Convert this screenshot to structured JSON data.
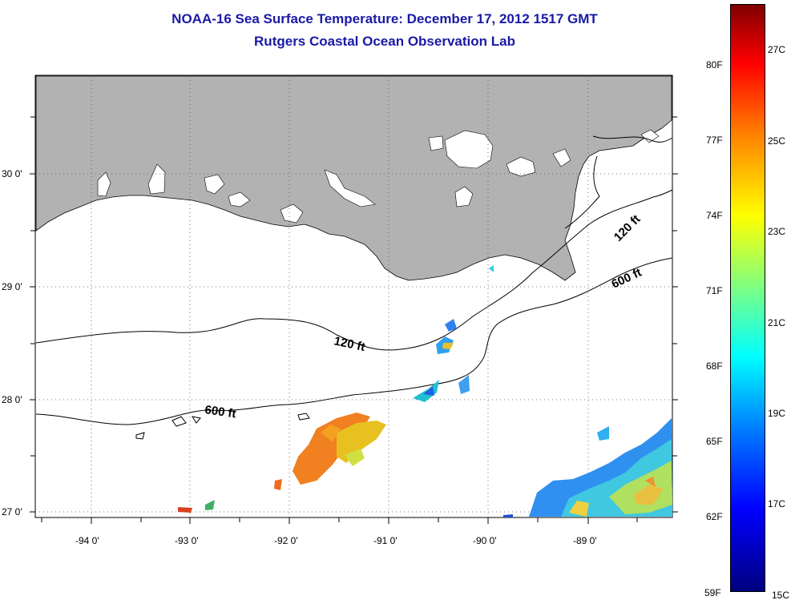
{
  "title": {
    "line1": "NOAA-16 Sea Surface Temperature:  December 17, 2012 1517 GMT",
    "line2": "Rutgers Coastal Ocean Observation Lab"
  },
  "map": {
    "land_color": "#b2b2b2",
    "water_color": "#ffffff",
    "lat_labels": [
      "30 0'",
      "29 0'",
      "28 0'",
      "27 0'"
    ],
    "lon_labels": [
      "-94 0'",
      "-93 0'",
      "-92 0'",
      "-91 0'",
      "-90 0'",
      "-89 0'"
    ],
    "isobaths": [
      {
        "label": "120 ft"
      },
      {
        "label": "600 ft"
      },
      {
        "label": "120 ft"
      },
      {
        "label": "600 ft"
      }
    ]
  },
  "colorbar": {
    "fahrenheit_labels": [
      "80F",
      "77F",
      "74F",
      "71F",
      "68F",
      "65F",
      "62F",
      "59F"
    ],
    "celsius_labels": [
      "27C",
      "25C",
      "23C",
      "21C",
      "19C",
      "17C",
      "15C"
    ],
    "colors": [
      "#00007f",
      "#0000ff",
      "#0080ff",
      "#00ffff",
      "#80ff80",
      "#ffff00",
      "#ff8000",
      "#ff0000",
      "#7f0000"
    ]
  }
}
